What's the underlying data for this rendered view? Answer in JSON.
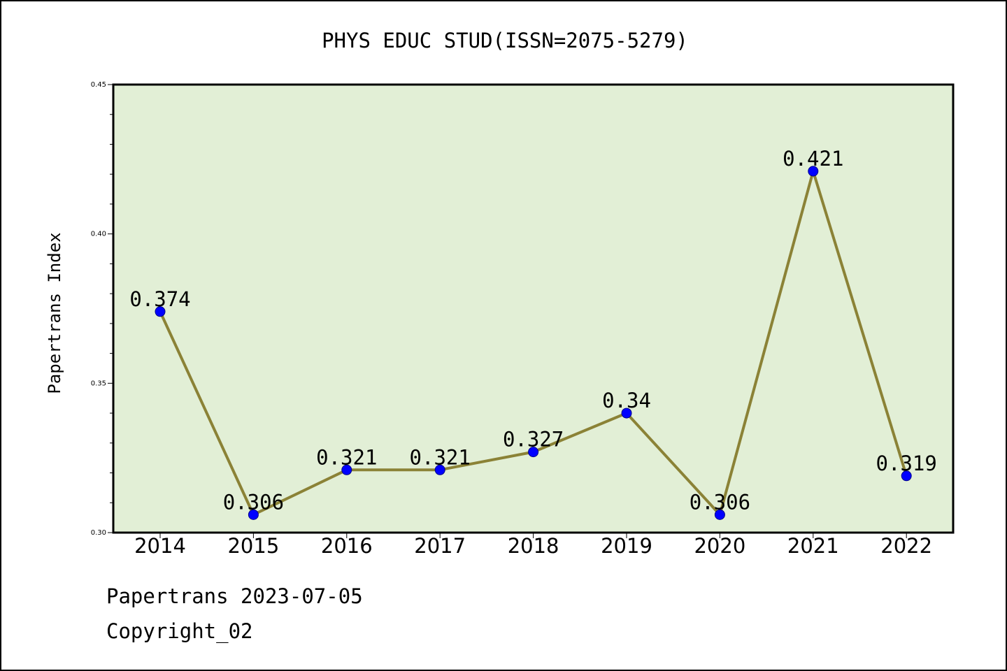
{
  "colors": {
    "plot_background": "#e2efd6",
    "line": "#8b8236",
    "marker": "#0000ff",
    "frame": "#000000"
  },
  "footer": {
    "line1": "Papertrans 2023-07-05",
    "line2": "Copyright_02"
  },
  "chart_data": {
    "type": "line",
    "title": "PHYS EDUC STUD(ISSN=2075-5279)",
    "xlabel": "",
    "ylabel": "Papertrans Index",
    "categories": [
      "2014",
      "2015",
      "2016",
      "2017",
      "2018",
      "2019",
      "2020",
      "2021",
      "2022"
    ],
    "series": [
      {
        "values": [
          0.374,
          0.306,
          0.321,
          0.321,
          0.327,
          0.34,
          0.306,
          0.421,
          0.319
        ],
        "data_labels": [
          "0.374",
          "0.306",
          "0.321",
          "0.321",
          "0.327",
          "0.34",
          "0.306",
          "0.421",
          "0.319"
        ]
      }
    ],
    "ylim": [
      0.3,
      0.45
    ],
    "yticks": [
      "0.30",
      "0.35",
      "0.40",
      "0.45"
    ],
    "grid": false,
    "legend": "none"
  }
}
